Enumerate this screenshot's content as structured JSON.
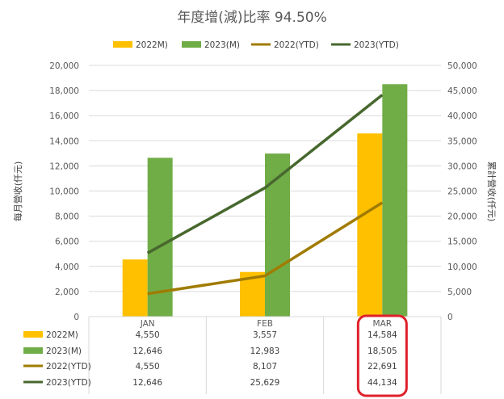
{
  "chart_data": {
    "type": "bar",
    "title": "年度增(減)比率 94.50%",
    "categories": [
      "JAN",
      "FEB",
      "MAR"
    ],
    "ylabel_left": "每月營收(仟元)",
    "ylabel_right": "累計營收(仟元)",
    "ylim_left": [
      0,
      20000
    ],
    "ylim_right": [
      0,
      50000
    ],
    "yticks_left": [
      "0",
      "2,000",
      "4,000",
      "6,000",
      "8,000",
      "10,000",
      "12,000",
      "14,000",
      "16,000",
      "18,000",
      "20,000"
    ],
    "yticks_right": [
      "0",
      "5,000",
      "10,000",
      "15,000",
      "20,000",
      "25,000",
      "30,000",
      "35,000",
      "40,000",
      "45,000",
      "50,000"
    ],
    "legend_position": "top",
    "grid": true,
    "series": [
      {
        "name": "2022M)",
        "type": "bar",
        "axis": "left",
        "color": "#FFC000",
        "values": [
          4550,
          3557,
          14584
        ],
        "labels": [
          "4,550",
          "3,557",
          "14,584"
        ]
      },
      {
        "name": "2023(M)",
        "type": "bar",
        "axis": "left",
        "color": "#70AD47",
        "values": [
          12646,
          12983,
          18505
        ],
        "labels": [
          "12,646",
          "12,983",
          "18,505"
        ]
      },
      {
        "name": "2022(YTD)",
        "type": "line",
        "axis": "right",
        "color": "#A07B00",
        "values": [
          4550,
          8107,
          22691
        ],
        "labels": [
          "4,550",
          "8,107",
          "22,691"
        ]
      },
      {
        "name": "2023(YTD)",
        "type": "line",
        "axis": "right",
        "color": "#47682E",
        "values": [
          12646,
          25629,
          44134
        ],
        "labels": [
          "12,646",
          "25,629",
          "44,134"
        ]
      }
    ],
    "highlight": {
      "category": "MAR",
      "color": "#E0202A"
    }
  }
}
